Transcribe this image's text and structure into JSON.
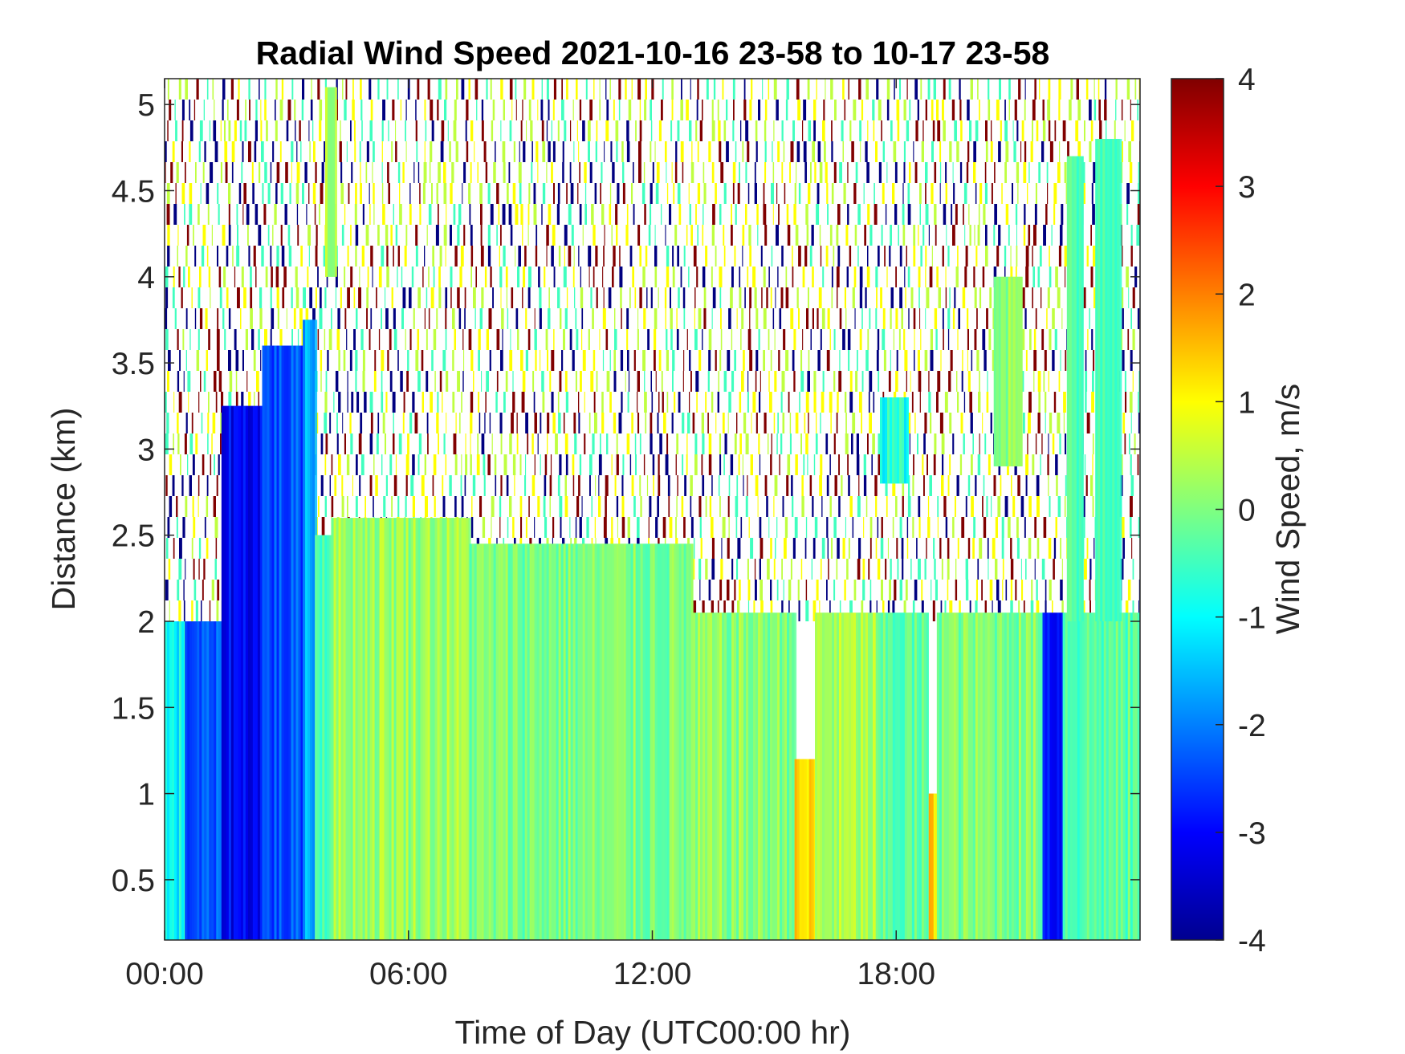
{
  "chart_data": {
    "type": "heatmap",
    "title": "Radial Wind Speed 2021-10-16 23-58 to 10-17 23-58",
    "xlabel": "Time of Day (UTC00:00 hr)",
    "ylabel": "Distance (km)",
    "colorbar_label": "Wind Speed, m/s",
    "colormap": "jet",
    "xlim": [
      0,
      24
    ],
    "ylim": [
      0.15,
      5.15
    ],
    "clim": [
      -4,
      4
    ],
    "x_ticks": [
      {
        "value": 0,
        "label": "00:00"
      },
      {
        "value": 6,
        "label": "06:00"
      },
      {
        "value": 12,
        "label": "12:00"
      },
      {
        "value": 18,
        "label": "18:00"
      }
    ],
    "y_ticks": [
      {
        "value": 0.5,
        "label": "0.5"
      },
      {
        "value": 1,
        "label": "1"
      },
      {
        "value": 1.5,
        "label": "1.5"
      },
      {
        "value": 2,
        "label": "2"
      },
      {
        "value": 2.5,
        "label": "2.5"
      },
      {
        "value": 3,
        "label": "3"
      },
      {
        "value": 3.5,
        "label": "3.5"
      },
      {
        "value": 4,
        "label": "4"
      },
      {
        "value": 4.5,
        "label": "4.5"
      },
      {
        "value": 5,
        "label": "5"
      }
    ],
    "c_ticks": [
      {
        "value": 4,
        "label": "4"
      },
      {
        "value": 3,
        "label": "3"
      },
      {
        "value": 2,
        "label": "2"
      },
      {
        "value": 1,
        "label": "1"
      },
      {
        "value": 0,
        "label": "0"
      },
      {
        "value": -1,
        "label": "-1"
      },
      {
        "value": -2,
        "label": "-2"
      },
      {
        "value": -3,
        "label": "-3"
      },
      {
        "value": -4,
        "label": "-4"
      }
    ],
    "regions": [
      {
        "x": [
          0.0,
          0.5
        ],
        "y": [
          0.15,
          2.0
        ],
        "mean": -1.0
      },
      {
        "x": [
          0.5,
          1.4
        ],
        "y": [
          0.15,
          2.0
        ],
        "mean": -2.4
      },
      {
        "x": [
          1.4,
          2.4
        ],
        "y": [
          0.15,
          3.25
        ],
        "mean": -3.0
      },
      {
        "x": [
          2.4,
          3.4
        ],
        "y": [
          0.15,
          3.6
        ],
        "mean": -2.4
      },
      {
        "x": [
          3.4,
          3.7
        ],
        "y": [
          0.15,
          3.75
        ],
        "mean": -1.6
      },
      {
        "x": [
          3.7,
          4.1
        ],
        "y": [
          0.15,
          2.5
        ],
        "mean": -0.3
      },
      {
        "x": [
          4.1,
          7.5
        ],
        "y": [
          0.15,
          2.6
        ],
        "mean": 0.25
      },
      {
        "x": [
          7.5,
          13.0
        ],
        "y": [
          0.15,
          2.45
        ],
        "mean": -0.05
      },
      {
        "x": [
          13.0,
          15.5
        ],
        "y": [
          0.15,
          2.05
        ],
        "mean": 0.05
      },
      {
        "x": [
          15.5,
          16.0
        ],
        "y": [
          0.15,
          1.2
        ],
        "mean": 1.2
      },
      {
        "x": [
          16.0,
          17.5
        ],
        "y": [
          0.15,
          2.05
        ],
        "mean": 0.3
      },
      {
        "x": [
          17.5,
          18.8
        ],
        "y": [
          0.15,
          2.05
        ],
        "mean": -0.3
      },
      {
        "x": [
          18.8,
          19.0
        ],
        "y": [
          0.15,
          1.0
        ],
        "mean": 1.3
      },
      {
        "x": [
          19.0,
          21.6
        ],
        "y": [
          0.15,
          2.05
        ],
        "mean": 0.0
      },
      {
        "x": [
          21.6,
          22.1
        ],
        "y": [
          0.15,
          2.05
        ],
        "mean": -2.8
      },
      {
        "x": [
          22.1,
          24.0
        ],
        "y": [
          0.15,
          2.05
        ],
        "mean": -0.3
      },
      {
        "x": [
          20.4,
          21.1
        ],
        "y": [
          2.9,
          4.0
        ],
        "mean": 0.2
      },
      {
        "x": [
          22.2,
          22.6
        ],
        "y": [
          2.0,
          4.7
        ],
        "mean": -0.5
      },
      {
        "x": [
          22.9,
          23.5
        ],
        "y": [
          2.0,
          4.8
        ],
        "mean": -0.3
      },
      {
        "x": [
          17.6,
          18.3
        ],
        "y": [
          2.8,
          3.3
        ],
        "mean": -0.8
      },
      {
        "x": [
          3.95,
          4.2
        ],
        "y": [
          4.0,
          5.1
        ],
        "mean": 0.3
      }
    ],
    "noise_above_km": 2.0,
    "noise_values": [
      -4,
      4,
      -0.5,
      0.5,
      1
    ]
  }
}
